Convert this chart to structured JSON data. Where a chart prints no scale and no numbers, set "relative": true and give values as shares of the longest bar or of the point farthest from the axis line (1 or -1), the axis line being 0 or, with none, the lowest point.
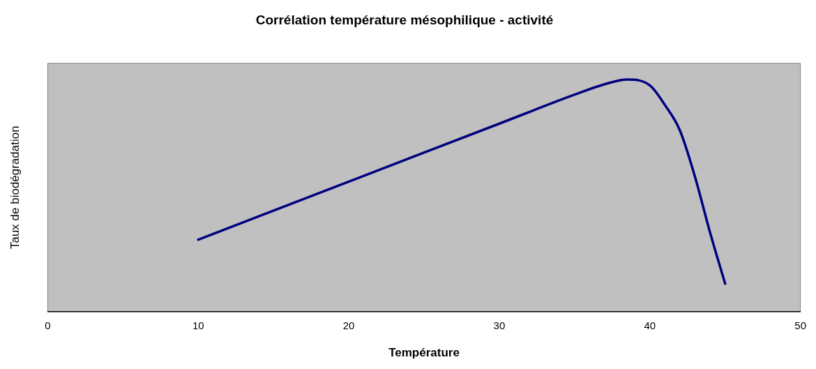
{
  "chart_data": {
    "type": "line",
    "title": "Corrélation température mésophilique - activité",
    "xlabel": "Température",
    "ylabel": "Taux de biodégradation",
    "relative": true,
    "x": [
      10,
      20,
      30,
      35,
      37,
      38.5,
      40,
      41,
      42,
      43,
      44,
      45
    ],
    "series": [
      {
        "color": "#000080",
        "values": [
          0.31,
          0.56,
          0.81,
          0.935,
          0.98,
          1.0,
          0.975,
          0.89,
          0.78,
          0.58,
          0.34,
          0.12
        ]
      }
    ],
    "xlim": [
      0,
      50
    ],
    "xticks": [
      0,
      10,
      20,
      30,
      40,
      50
    ],
    "grid": false,
    "legend": false,
    "marker": "none",
    "line_style": "solid"
  }
}
